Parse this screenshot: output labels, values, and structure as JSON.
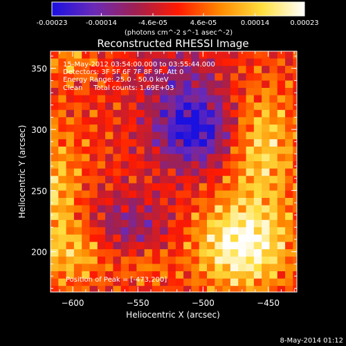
{
  "chart_data": {
    "type": "heatmap",
    "title": "Reconstructed RHESSI Image",
    "xlabel": "Heliocentric X (arcsec)",
    "ylabel": "Heliocentric Y (arcsec)",
    "xlim": [
      -617,
      -428
    ],
    "ylim": [
      167,
      364
    ],
    "x_ticks": [
      -600,
      -550,
      -500,
      -450
    ],
    "y_ticks": [
      200,
      250,
      300,
      350
    ],
    "colorbar": {
      "range": [
        -0.00023,
        0.00023
      ],
      "tick_values": [
        -0.00023,
        -0.00014,
        -4.6e-05,
        4.6e-05,
        0.00014,
        0.00023
      ],
      "tick_labels": [
        "-0.00023",
        "-0.00014",
        "-4.6e-05",
        "4.6e-05",
        "0.00014",
        "0.00023"
      ],
      "unit_label": "(photons cm^-2 s^-1 asec^-2)",
      "colors": [
        "#1a10e0",
        "#6a2ab8",
        "#a02050",
        "#ff1a00",
        "#ff8a00",
        "#ffe040",
        "#ffffff"
      ]
    },
    "annotations": [
      "15-May-2012 03:54:00.000 to 03:55:44.000",
      "Detectors: 3F 5F 6F 7F 8F 9F, Att 0",
      "Energy Range: 25.0 - 50.0 keV",
      "Clean     Total counts: 1.69E+03"
    ],
    "peak_label": "Position of Peak = [-473,200]",
    "peak_position": [
      -473,
      200
    ],
    "cell_size": 6,
    "sources": [
      {
        "x": -470,
        "y": 205,
        "sx": 25,
        "sy": 25,
        "amp": 0.00023
      },
      {
        "x": -455,
        "y": 285,
        "sx": 18,
        "sy": 35,
        "amp": 0.00015
      },
      {
        "x": -617,
        "y": 240,
        "sx": 18,
        "sy": 45,
        "amp": 0.00014
      },
      {
        "x": -590,
        "y": 200,
        "sx": 16,
        "sy": 16,
        "amp": 0.0001
      },
      {
        "x": -545,
        "y": 190,
        "sx": 14,
        "sy": 10,
        "amp": 8e-05
      },
      {
        "x": -600,
        "y": 355,
        "sx": 12,
        "sy": 10,
        "amp": 8e-05
      },
      {
        "x": -507,
        "y": 300,
        "sx": 22,
        "sy": 22,
        "amp": -0.00023
      },
      {
        "x": -560,
        "y": 220,
        "sx": 25,
        "sy": 20,
        "amp": -0.00011
      },
      {
        "x": -520,
        "y": 345,
        "sx": 25,
        "sy": 18,
        "amp": -8e-05
      }
    ]
  },
  "footer": {
    "timestamp": "8-May-2014 01:12"
  }
}
